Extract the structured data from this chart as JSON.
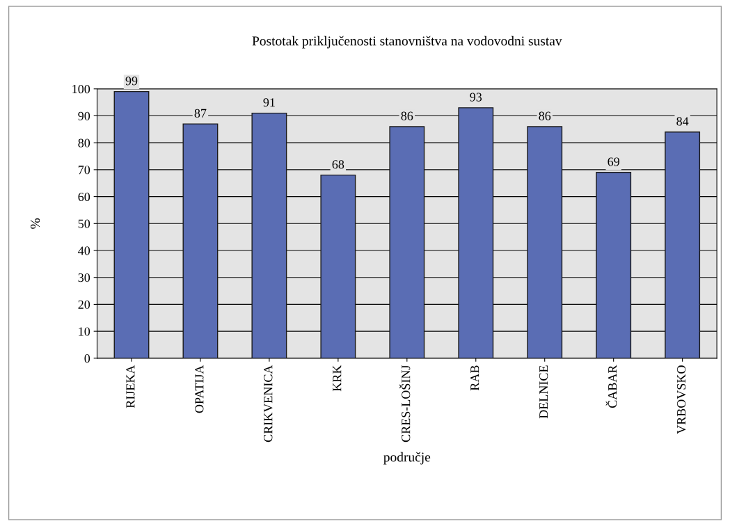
{
  "chart_data": {
    "type": "bar",
    "title": "Postotak priključenosti stanovništva na vodovodni sustav",
    "xlabel": "područje",
    "ylabel": "%",
    "categories": [
      "RIJEKA",
      "OPATIJA",
      "CRIKVENICA",
      "KRK",
      "CRES-LOŠINJ",
      "RAB",
      "DELNICE",
      "ČABAR",
      "VRBOVSKO"
    ],
    "values": [
      99,
      87,
      91,
      68,
      86,
      93,
      86,
      69,
      84
    ],
    "color": "#5a6db4",
    "ylim": [
      0,
      100
    ],
    "yticks": [
      0,
      10,
      20,
      30,
      40,
      50,
      60,
      70,
      80,
      90,
      100
    ],
    "grid": "y",
    "data_labels": true
  }
}
